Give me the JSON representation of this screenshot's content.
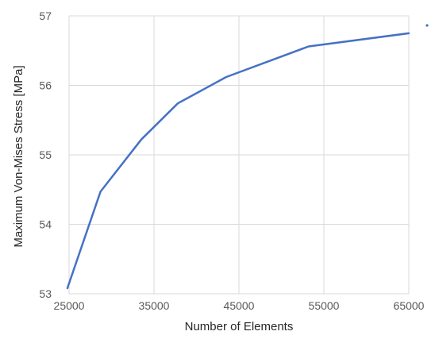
{
  "chart_data": {
    "type": "line",
    "xlabel": "Number of Elements",
    "ylabel": "Maximum Von-Mises Stress [MPa]",
    "xlim": [
      25000,
      65000
    ],
    "ylim": [
      53,
      57
    ],
    "x_ticks": [
      "25000",
      "35000",
      "45000",
      "55000",
      "65000"
    ],
    "y_ticks": [
      "53",
      "54",
      "55",
      "56",
      "57"
    ],
    "grid": true,
    "series": [
      {
        "color": "#4472c4",
        "x": [
          24800,
          28700,
          33500,
          37800,
          43500,
          53200,
          65000
        ],
        "y": [
          53.08,
          54.47,
          55.22,
          55.74,
          56.12,
          56.56,
          56.75
        ]
      }
    ]
  }
}
